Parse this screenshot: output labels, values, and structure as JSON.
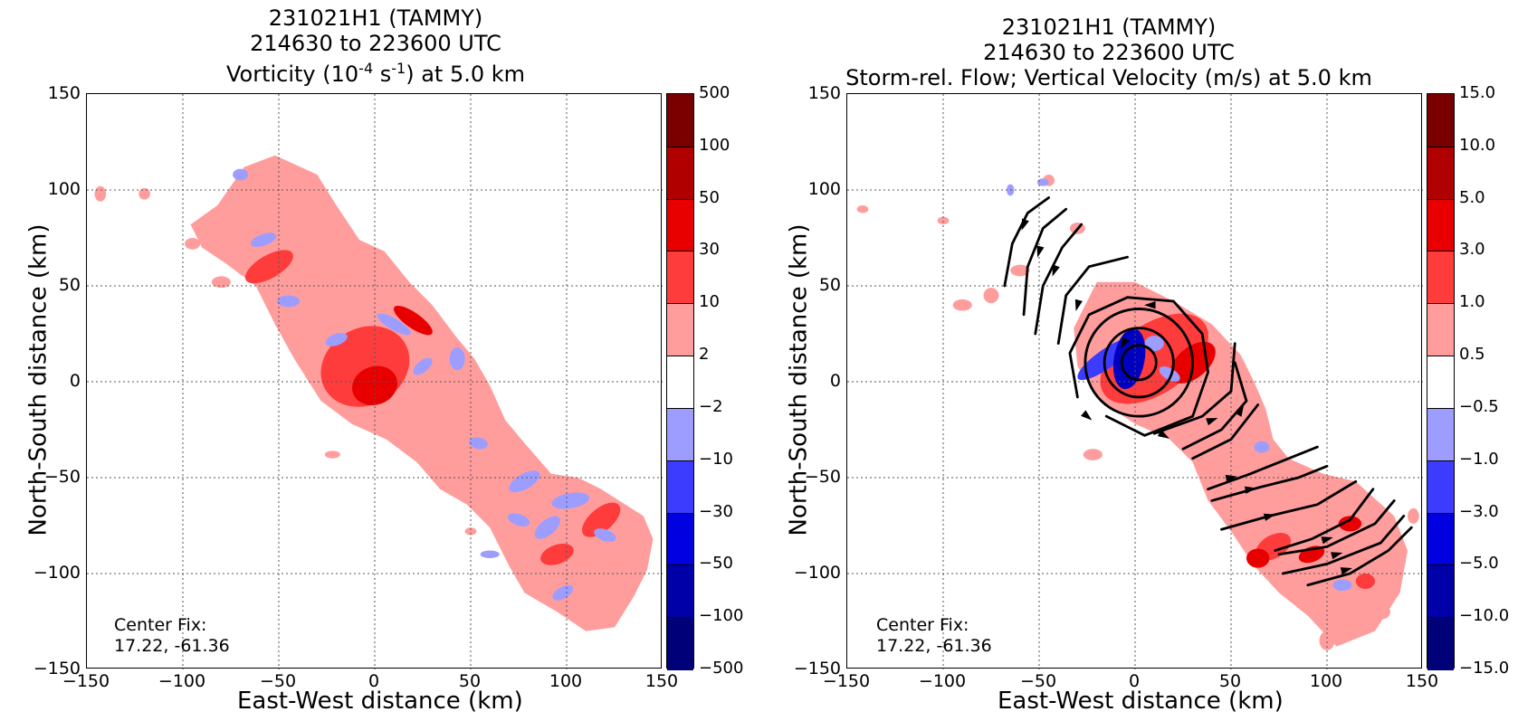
{
  "chart_data": [
    {
      "type": "heatmap",
      "title_lines": [
        "231021H1 (TAMMY)",
        "214630 to 223600 UTC"
      ],
      "title_line3_prefix": "Vorticity (10",
      "title_line3_exp1": "-4",
      "title_line3_mid": " s",
      "title_line3_exp2": "-1",
      "title_line3_suffix": ") at 5.0 km",
      "xlabel": "East-West distance (km)",
      "ylabel": "North-South distance (km)",
      "xlim": [
        -150,
        150
      ],
      "ylim": [
        -150,
        150
      ],
      "xticks": [
        "−150",
        "−100",
        "−50",
        "0",
        "50",
        "100",
        "150"
      ],
      "yticks": [
        "150",
        "100",
        "50",
        "0",
        "−50",
        "−100",
        "−150"
      ],
      "grid": true,
      "colorbar_levels": [
        "500",
        "100",
        "50",
        "30",
        "10",
        "2",
        "−2",
        "−10",
        "−30",
        "−50",
        "−100",
        "−500"
      ],
      "annotation_lines": [
        "Center Fix:",
        "17.22, -61.36"
      ]
    },
    {
      "type": "heatmap",
      "title_lines": [
        "231021H1 (TAMMY)",
        "214630 to 223600 UTC",
        "Storm-rel. Flow; Vertical Velocity (m/s) at 5.0 km"
      ],
      "xlabel": "East-West distance (km)",
      "ylabel": "North-South distance (km)",
      "xlim": [
        -150,
        150
      ],
      "ylim": [
        -150,
        150
      ],
      "xticks": [
        "−150",
        "−100",
        "−50",
        "0",
        "50",
        "100",
        "150"
      ],
      "yticks": [
        "150",
        "100",
        "50",
        "0",
        "−50",
        "−100",
        "−150"
      ],
      "grid": true,
      "colorbar_levels": [
        "15.0",
        "10.0",
        "5.0",
        "3.0",
        "1.0",
        "0.5",
        "−0.5",
        "−1.0",
        "−3.0",
        "−5.0",
        "−10.0",
        "−15.0"
      ],
      "annotation_lines": [
        "Center Fix:",
        "17.22, -61.36"
      ]
    }
  ],
  "colors": {
    "colorbar_bins": [
      "#7a0000",
      "#b00000",
      "#e80000",
      "#ff3c3c",
      "#ff9d9d",
      "#ffffff",
      "#9d9dff",
      "#3c3cff",
      "#0000e0",
      "#0000a8",
      "#000078"
    ],
    "pos_light": "#ff9d9d",
    "pos_mid": "#ff3c3c",
    "pos_dark": "#e80000",
    "neg_light": "#9d9dff",
    "neg_mid": "#3c3cff",
    "neg_dark": "#0000c0",
    "grid": "#555555"
  }
}
